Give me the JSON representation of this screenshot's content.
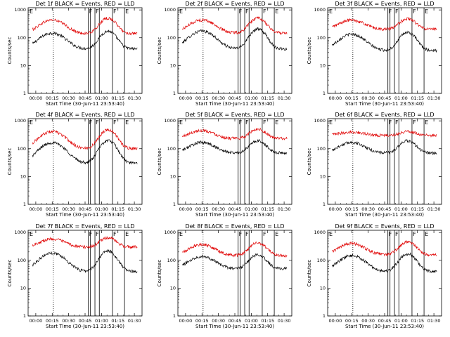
{
  "figure": {
    "ylabel": "Counts/sec",
    "xlabel": "Start Time (30-Jun-11 23:53:40)",
    "x_tick_labels": [
      "00:00",
      "00:15",
      "00:30",
      "00:45",
      "01:00",
      "01:15",
      "01:30"
    ],
    "y_tick_labels": [
      "1",
      "10",
      "100",
      "1000"
    ],
    "series_colors": {
      "events": "#000000",
      "lld": "#e00000"
    },
    "marker_labels": [
      "E",
      "F",
      "F",
      "F",
      "E"
    ]
  },
  "chart_data": [
    {
      "type": "line",
      "title": "Det 1f BLACK = Events, RED = LLD",
      "ylim": [
        1,
        1200
      ],
      "y_scale": "log",
      "x_range_minutes": [
        -7,
        97
      ],
      "dotted_vertical_line_min": 16,
      "event_boundaries_min": [
        48,
        54,
        58,
        70,
        81
      ],
      "series": [
        {
          "name": "BLACK = Events",
          "baseline": 40,
          "amplitude": 120
        },
        {
          "name": "RED = LLD",
          "baseline": 140,
          "amplitude": 330
        }
      ]
    },
    {
      "type": "line",
      "title": "Det 2f BLACK = Events, RED = LLD",
      "ylim": [
        1,
        1200
      ],
      "y_scale": "log",
      "x_range_minutes": [
        -7,
        97
      ],
      "dotted_vertical_line_min": 16,
      "event_boundaries_min": [
        48,
        54,
        58,
        70,
        81
      ],
      "series": [
        {
          "name": "BLACK = Events",
          "baseline": 40,
          "amplitude": 150
        },
        {
          "name": "RED = LLD",
          "baseline": 150,
          "amplitude": 320
        }
      ]
    },
    {
      "type": "line",
      "title": "Det 3f BLACK = Events, RED = LLD",
      "ylim": [
        1,
        1200
      ],
      "y_scale": "log",
      "x_range_minutes": [
        -7,
        97
      ],
      "dotted_vertical_line_min": 16,
      "event_boundaries_min": [
        48,
        54,
        58,
        70,
        81
      ],
      "series": [
        {
          "name": "BLACK = Events",
          "baseline": 35,
          "amplitude": 110
        },
        {
          "name": "RED = LLD",
          "baseline": 200,
          "amplitude": 260
        }
      ]
    },
    {
      "type": "line",
      "title": "Det 4f BLACK = Events, RED = LLD",
      "ylim": [
        1,
        1200
      ],
      "y_scale": "log",
      "x_range_minutes": [
        -7,
        97
      ],
      "dotted_vertical_line_min": 16,
      "event_boundaries_min": [
        48,
        54,
        58,
        70,
        81
      ],
      "series": [
        {
          "name": "BLACK = Events",
          "baseline": 30,
          "amplitude": 150
        },
        {
          "name": "RED = LLD",
          "baseline": 100,
          "amplitude": 350
        }
      ]
    },
    {
      "type": "line",
      "title": "Det 5f BLACK = Events, RED = LLD",
      "ylim": [
        1,
        1200
      ],
      "y_scale": "log",
      "x_range_minutes": [
        -7,
        97
      ],
      "dotted_vertical_line_min": 16,
      "event_boundaries_min": [
        48,
        54,
        58,
        70,
        81
      ],
      "series": [
        {
          "name": "BLACK = Events",
          "baseline": 70,
          "amplitude": 110
        },
        {
          "name": "RED = LLD",
          "baseline": 230,
          "amplitude": 250
        }
      ]
    },
    {
      "type": "line",
      "title": "Det 6f BLACK = Events, RED = LLD",
      "ylim": [
        1,
        1200
      ],
      "y_scale": "log",
      "x_range_minutes": [
        -7,
        97
      ],
      "dotted_vertical_line_min": 16,
      "event_boundaries_min": [
        48,
        54,
        58,
        70,
        81
      ],
      "series": [
        {
          "name": "BLACK = Events",
          "baseline": 70,
          "amplitude": 110
        },
        {
          "name": "RED = LLD",
          "baseline": 300,
          "amplitude": 110
        }
      ]
    },
    {
      "type": "line",
      "title": "Det 7f BLACK = Events, RED = LLD",
      "ylim": [
        1,
        1200
      ],
      "y_scale": "log",
      "x_range_minutes": [
        -7,
        97
      ],
      "dotted_vertical_line_min": 16,
      "event_boundaries_min": [
        48,
        54,
        58,
        70,
        81
      ],
      "series": [
        {
          "name": "BLACK = Events",
          "baseline": 40,
          "amplitude": 160
        },
        {
          "name": "RED = LLD",
          "baseline": 300,
          "amplitude": 320
        }
      ]
    },
    {
      "type": "line",
      "title": "Det 8f BLACK = Events, RED = LLD",
      "ylim": [
        1,
        1200
      ],
      "y_scale": "log",
      "x_range_minutes": [
        -7,
        97
      ],
      "dotted_vertical_line_min": 16,
      "event_boundaries_min": [
        48,
        54,
        58,
        70,
        81
      ],
      "series": [
        {
          "name": "BLACK = Events",
          "baseline": 50,
          "amplitude": 100
        },
        {
          "name": "RED = LLD",
          "baseline": 150,
          "amplitude": 250
        }
      ]
    },
    {
      "type": "line",
      "title": "Det 9f BLACK = Events, RED = LLD",
      "ylim": [
        1,
        1200
      ],
      "y_scale": "log",
      "x_range_minutes": [
        -7,
        97
      ],
      "dotted_vertical_line_min": 16,
      "event_boundaries_min": [
        48,
        54,
        58,
        70,
        81
      ],
      "series": [
        {
          "name": "BLACK = Events",
          "baseline": 40,
          "amplitude": 120
        },
        {
          "name": "RED = LLD",
          "baseline": 160,
          "amplitude": 270
        }
      ]
    }
  ]
}
